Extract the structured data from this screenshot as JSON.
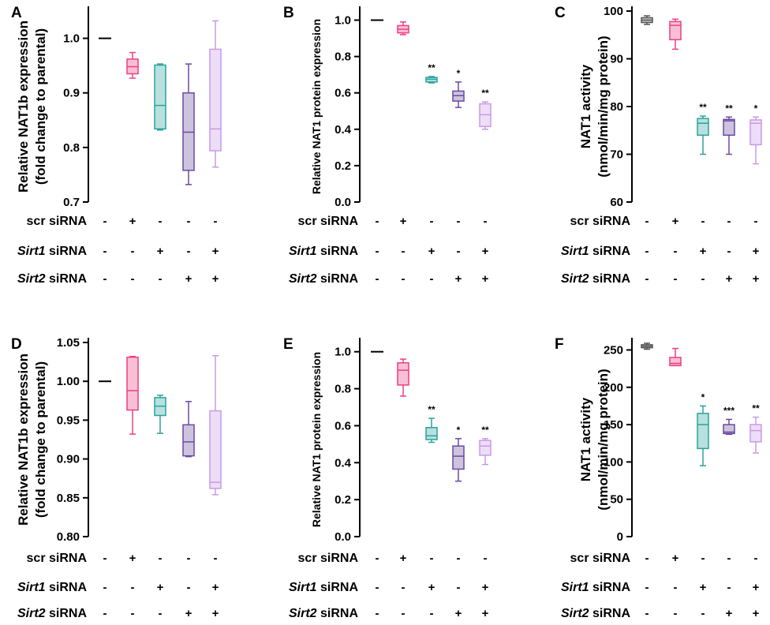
{
  "colors": {
    "parental": "#555555",
    "scr": "#ee3f82",
    "sirt1": "#2aa39c",
    "sirt2": "#6a4aa0",
    "sirt12": "#c89ae8",
    "axis": "#000000"
  },
  "conditions": {
    "scr": "scr siRNA",
    "sirt1_gene": "Sirt1",
    "sirt2_gene": "Sirt2",
    "suffix": " siRNA",
    "signs": {
      "scr": [
        "-",
        "+",
        "-",
        "-",
        "-"
      ],
      "sirt1": [
        "-",
        "-",
        "+",
        "-",
        "+"
      ],
      "sirt2": [
        "-",
        "-",
        "-",
        "+",
        "+"
      ]
    }
  },
  "chart_data": [
    {
      "panel": "A",
      "type": "box",
      "ylabel": [
        "Relative NAT1b expression",
        "(fold change to parental)"
      ],
      "ylim": [
        0.7,
        1.05
      ],
      "yticks": [
        0.7,
        0.8,
        0.9,
        1.0
      ],
      "tick_labels": [
        "0.7",
        "0.8",
        "0.9",
        "1.0"
      ],
      "groups": [
        {
          "name": "parental",
          "line": 1.0
        },
        {
          "name": "scr siRNA",
          "min": 0.927,
          "q1": 0.935,
          "median": 0.948,
          "q3": 0.962,
          "max": 0.974
        },
        {
          "name": "Sirt1 siRNA",
          "min": 0.832,
          "q1": 0.834,
          "median": 0.877,
          "q3": 0.951,
          "max": 0.953
        },
        {
          "name": "Sirt2 siRNA",
          "min": 0.732,
          "q1": 0.758,
          "median": 0.828,
          "q3": 0.9,
          "max": 0.953
        },
        {
          "name": "Sirt1+Sirt2 siRNA",
          "min": 0.764,
          "q1": 0.794,
          "median": 0.834,
          "q3": 0.98,
          "max": 1.032
        }
      ],
      "significance": [
        "",
        "",
        "",
        "",
        ""
      ]
    },
    {
      "panel": "B",
      "type": "box",
      "ylabel": [
        "Relative NAT1 protein expression"
      ],
      "ylim": [
        0.0,
        1.05
      ],
      "yticks": [
        0.0,
        0.2,
        0.4,
        0.6,
        0.8,
        1.0
      ],
      "tick_labels": [
        "0.0",
        "0.2",
        "0.4",
        "0.6",
        "0.8",
        "1.0"
      ],
      "groups": [
        {
          "name": "parental",
          "line": 1.0
        },
        {
          "name": "scr siRNA",
          "min": 0.92,
          "q1": 0.93,
          "median": 0.95,
          "q3": 0.97,
          "max": 0.99
        },
        {
          "name": "Sirt1 siRNA",
          "min": 0.655,
          "q1": 0.66,
          "median": 0.675,
          "q3": 0.685,
          "max": 0.69
        },
        {
          "name": "Sirt2 siRNA",
          "min": 0.52,
          "q1": 0.555,
          "median": 0.585,
          "q3": 0.61,
          "max": 0.66
        },
        {
          "name": "Sirt1+Sirt2 siRNA",
          "min": 0.4,
          "q1": 0.415,
          "median": 0.48,
          "q3": 0.54,
          "max": 0.55
        }
      ],
      "significance": [
        "",
        "",
        "**",
        "*",
        "**"
      ]
    },
    {
      "panel": "C",
      "type": "box",
      "ylabel": [
        "NAT1 activity",
        "(nmol/min/mg protein)"
      ],
      "ylim": [
        60,
        100
      ],
      "yticks": [
        60,
        70,
        80,
        90,
        100
      ],
      "tick_labels": [
        "60",
        "70",
        "80",
        "90",
        "100"
      ],
      "groups": [
        {
          "name": "parental",
          "min": 97.2,
          "q1": 97.6,
          "median": 98.1,
          "q3": 98.6,
          "max": 99.0
        },
        {
          "name": "scr siRNA",
          "min": 92.0,
          "q1": 94.0,
          "median": 97.0,
          "q3": 97.8,
          "max": 98.3
        },
        {
          "name": "Sirt1 siRNA",
          "min": 70.0,
          "q1": 74.0,
          "median": 76.5,
          "q3": 77.5,
          "max": 78.0
        },
        {
          "name": "Sirt2 siRNA",
          "min": 70.0,
          "q1": 74.0,
          "median": 77.0,
          "q3": 77.3,
          "max": 77.8
        },
        {
          "name": "Sirt1+Sirt2 siRNA",
          "min": 68.0,
          "q1": 72.0,
          "median": 76.5,
          "q3": 77.2,
          "max": 77.8
        }
      ],
      "significance": [
        "",
        "",
        "**",
        "**",
        "*"
      ]
    },
    {
      "panel": "D",
      "type": "box",
      "ylabel": [
        "Relative NAT1b expression",
        "(fold change to parental)"
      ],
      "ylim": [
        0.8,
        1.05
      ],
      "yticks": [
        0.8,
        0.85,
        0.9,
        0.95,
        1.0,
        1.05
      ],
      "tick_labels": [
        "0.80",
        "0.85",
        "0.90",
        "0.95",
        "1.00",
        "1.05"
      ],
      "groups": [
        {
          "name": "parental",
          "line": 1.0
        },
        {
          "name": "scr siRNA",
          "min": 0.932,
          "q1": 0.963,
          "median": 0.988,
          "q3": 1.031,
          "max": 1.032
        },
        {
          "name": "Sirt1 siRNA",
          "min": 0.933,
          "q1": 0.956,
          "median": 0.968,
          "q3": 0.979,
          "max": 0.982
        },
        {
          "name": "Sirt2 siRNA",
          "min": 0.903,
          "q1": 0.904,
          "median": 0.922,
          "q3": 0.944,
          "max": 0.974
        },
        {
          "name": "Sirt1+Sirt2 siRNA",
          "min": 0.854,
          "q1": 0.862,
          "median": 0.87,
          "q3": 0.962,
          "max": 1.033
        }
      ],
      "significance": [
        "",
        "",
        "",
        "",
        ""
      ]
    },
    {
      "panel": "E",
      "type": "box",
      "ylabel": [
        "Relative NAT1 protein expression"
      ],
      "ylim": [
        0.0,
        1.05
      ],
      "yticks": [
        0.0,
        0.2,
        0.4,
        0.6,
        0.8,
        1.0
      ],
      "tick_labels": [
        "0.0",
        "0.2",
        "0.4",
        "0.6",
        "0.8",
        "1.0"
      ],
      "groups": [
        {
          "name": "parental",
          "line": 1.0
        },
        {
          "name": "scr siRNA",
          "min": 0.76,
          "q1": 0.82,
          "median": 0.9,
          "q3": 0.94,
          "max": 0.96
        },
        {
          "name": "Sirt1 siRNA",
          "min": 0.51,
          "q1": 0.525,
          "median": 0.545,
          "q3": 0.59,
          "max": 0.64
        },
        {
          "name": "Sirt2 siRNA",
          "min": 0.3,
          "q1": 0.365,
          "median": 0.435,
          "q3": 0.49,
          "max": 0.53
        },
        {
          "name": "Sirt1+Sirt2 siRNA",
          "min": 0.39,
          "q1": 0.44,
          "median": 0.49,
          "q3": 0.52,
          "max": 0.53
        }
      ],
      "significance": [
        "",
        "",
        "**",
        "*",
        "**"
      ]
    },
    {
      "panel": "F",
      "type": "box",
      "ylabel": [
        "NAT1 activity",
        "(nmol/min/mg protein)"
      ],
      "ylim": [
        0,
        260
      ],
      "yticks": [
        0,
        50,
        100,
        150,
        200,
        250
      ],
      "tick_labels": [
        "0",
        "50",
        "100",
        "150",
        "200",
        "250"
      ],
      "groups": [
        {
          "name": "parental",
          "min": 251,
          "q1": 253,
          "median": 255,
          "q3": 257,
          "max": 259
        },
        {
          "name": "scr siRNA",
          "min": 229,
          "q1": 229,
          "median": 232,
          "q3": 240,
          "max": 252
        },
        {
          "name": "Sirt1 siRNA",
          "min": 95,
          "q1": 118,
          "median": 150,
          "q3": 165,
          "max": 175
        },
        {
          "name": "Sirt2 siRNA",
          "min": 137,
          "q1": 138,
          "median": 140,
          "q3": 150,
          "max": 157
        },
        {
          "name": "Sirt1+Sirt2 siRNA",
          "min": 112,
          "q1": 127,
          "median": 142,
          "q3": 150,
          "max": 160
        }
      ],
      "significance": [
        "",
        "",
        "*",
        "***",
        "**"
      ]
    }
  ]
}
